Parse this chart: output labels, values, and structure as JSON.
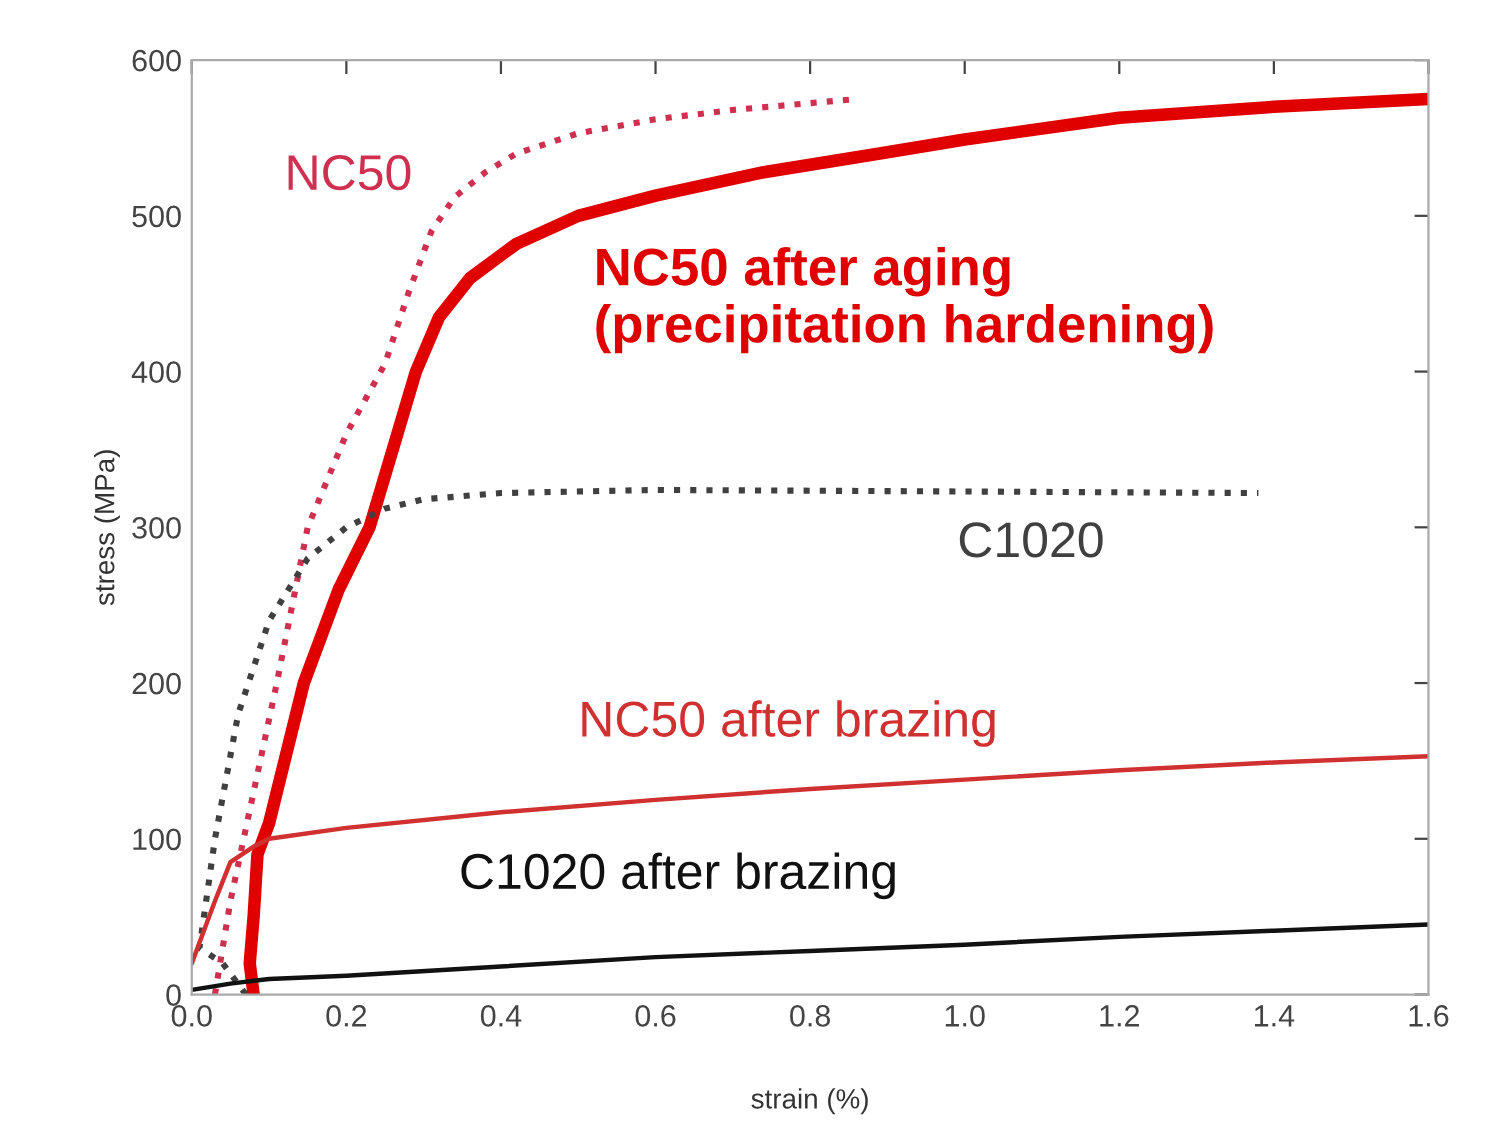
{
  "chart_data": {
    "type": "line",
    "xlabel": "strain (%)",
    "ylabel": "stress (MPa)",
    "xlim": [
      0,
      1.6
    ],
    "ylim": [
      0,
      600
    ],
    "xticks": [
      {
        "value": 0,
        "label": "0.0"
      },
      0.2,
      0.4,
      0.6,
      0.8,
      {
        "value": 1,
        "label": "1.0"
      },
      1.2,
      1.4,
      1.6
    ],
    "yticks": [
      0,
      100,
      200,
      300,
      400,
      500,
      600
    ],
    "grid": false,
    "legend": false,
    "series": [
      {
        "name": "NC50",
        "color": "#d03050",
        "line_style": "dotted",
        "x": [
          0.03,
          0.05,
          0.08,
          0.11,
          0.15,
          0.2,
          0.25,
          0.28,
          0.31,
          0.34,
          0.38,
          0.42,
          0.5,
          0.6,
          0.7,
          0.86
        ],
        "values": [
          0,
          60,
          130,
          200,
          300,
          360,
          405,
          450,
          490,
          512,
          528,
          540,
          553,
          562,
          568,
          575
        ]
      },
      {
        "name": "NC50 after aging\n(precipitation hardening)",
        "color": "#e00000",
        "line_style": "solid",
        "x": [
          0.08,
          0.075,
          0.08,
          0.085,
          0.1,
          0.145,
          0.19,
          0.23,
          0.26,
          0.29,
          0.32,
          0.36,
          0.42,
          0.5,
          0.6,
          0.74,
          0.89,
          1.0,
          1.2,
          1.4,
          1.6
        ],
        "values": [
          0,
          20,
          50,
          90,
          110,
          200,
          260,
          300,
          350,
          400,
          435,
          460,
          482,
          500,
          513,
          528,
          540,
          549,
          563,
          570,
          575
        ]
      },
      {
        "name": "C1020",
        "color": "#404040",
        "line_style": "dotted",
        "x": [
          0.07,
          0.04,
          0.01,
          0.03,
          0.06,
          0.1,
          0.15,
          0.2,
          0.25,
          0.3,
          0.4,
          0.6,
          1.0,
          1.38
        ],
        "values": [
          0,
          20,
          30,
          100,
          180,
          240,
          280,
          300,
          312,
          318,
          322,
          324,
          323,
          322
        ]
      },
      {
        "name": "NC50 after brazing",
        "color": "#d03030",
        "line_style": "solid",
        "x": [
          0.0,
          0.03,
          0.05,
          0.08,
          0.1,
          0.2,
          0.4,
          0.6,
          0.8,
          1.0,
          1.2,
          1.4,
          1.6
        ],
        "values": [
          20,
          60,
          85,
          95,
          100,
          107,
          117,
          125,
          132,
          138,
          144,
          149,
          153
        ]
      },
      {
        "name": "C1020 after brazing",
        "color": "#111111",
        "line_style": "solid",
        "x": [
          0.0,
          0.05,
          0.1,
          0.2,
          0.4,
          0.6,
          0.8,
          1.0,
          1.2,
          1.4,
          1.6
        ],
        "values": [
          3,
          7,
          10,
          12,
          18,
          24,
          28,
          32,
          37,
          41,
          45
        ]
      }
    ]
  }
}
